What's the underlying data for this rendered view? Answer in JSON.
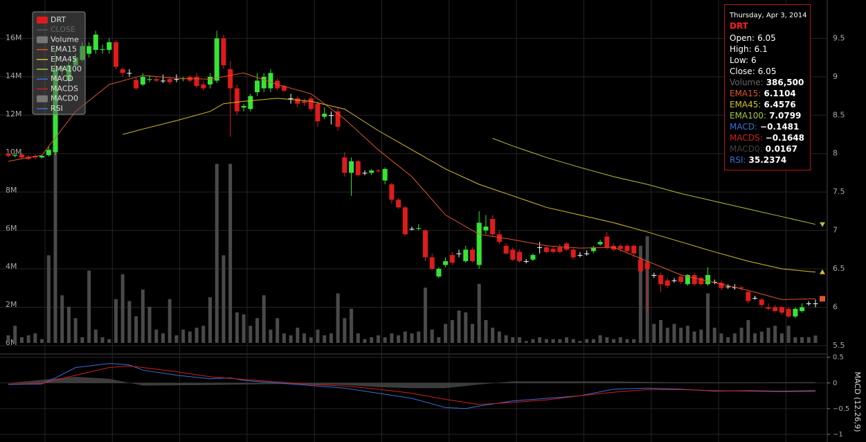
{
  "chart_data": {
    "type": "candlestick",
    "symbol": "DRT",
    "up_color": "#35e535",
    "down_color": "#e01b1b",
    "doji_color": "#ffffff",
    "ohlc": [
      [
        8.0,
        8.02,
        7.95,
        7.97
      ],
      [
        7.97,
        8.0,
        7.95,
        7.98
      ],
      [
        7.99,
        8.01,
        7.93,
        7.95
      ],
      [
        7.96,
        7.98,
        7.92,
        7.93
      ],
      [
        7.97,
        7.99,
        7.93,
        7.95
      ],
      [
        7.95,
        7.99,
        7.94,
        7.97
      ],
      [
        7.98,
        8.1,
        7.96,
        8.05
      ],
      [
        8.02,
        9.35,
        7.98,
        9.1
      ],
      [
        9.1,
        9.15,
        9.02,
        9.12
      ],
      [
        8.95,
        9.2,
        8.9,
        9.15
      ],
      [
        9.15,
        9.3,
        9.1,
        9.25
      ],
      [
        9.22,
        9.45,
        9.2,
        9.4
      ],
      [
        9.3,
        9.45,
        9.25,
        9.4
      ],
      [
        9.35,
        9.6,
        9.3,
        9.55
      ],
      [
        9.35,
        9.42,
        9.3,
        9.36
      ],
      [
        9.35,
        9.5,
        9.3,
        9.45
      ],
      [
        9.45,
        9.48,
        9.1,
        9.13
      ],
      [
        9.1,
        9.12,
        9.0,
        9.05
      ],
      [
        9.05,
        9.1,
        9.0,
        9.05
      ],
      [
        8.96,
        9.0,
        8.83,
        8.85
      ],
      [
        8.9,
        9.05,
        8.88,
        9.0
      ],
      [
        8.96,
        9.02,
        8.93,
        8.97
      ],
      [
        8.97,
        9.0,
        8.93,
        8.95
      ],
      [
        8.95,
        9.03,
        8.92,
        8.95
      ],
      [
        8.97,
        9.0,
        8.9,
        8.93
      ],
      [
        8.97,
        9.03,
        8.93,
        8.97
      ],
      [
        8.97,
        9.0,
        8.94,
        8.98
      ],
      [
        9.0,
        9.02,
        8.93,
        8.95
      ],
      [
        9.0,
        9.05,
        8.85,
        8.88
      ],
      [
        8.9,
        8.95,
        8.82,
        8.85
      ],
      [
        8.9,
        9.05,
        8.85,
        9.0
      ],
      [
        8.95,
        9.6,
        8.92,
        9.5
      ],
      [
        9.5,
        9.55,
        9.1,
        9.15
      ],
      [
        9.1,
        9.2,
        8.22,
        8.85
      ],
      [
        8.85,
        8.9,
        8.5,
        8.55
      ],
      [
        8.6,
        8.65,
        8.55,
        8.62
      ],
      [
        8.58,
        8.78,
        8.55,
        8.75
      ],
      [
        8.8,
        9.05,
        8.75,
        8.95
      ],
      [
        8.85,
        9.05,
        8.8,
        9.0
      ],
      [
        8.85,
        9.1,
        8.8,
        9.05
      ],
      [
        8.95,
        8.98,
        8.82,
        8.85
      ],
      [
        8.88,
        8.9,
        8.8,
        8.82
      ],
      [
        8.72,
        8.78,
        8.65,
        8.72
      ],
      [
        8.72,
        8.75,
        8.6,
        8.65
      ],
      [
        8.68,
        8.72,
        8.62,
        8.66
      ],
      [
        8.72,
        8.75,
        8.55,
        8.58
      ],
      [
        8.65,
        8.68,
        8.35,
        8.42
      ],
      [
        8.48,
        8.6,
        8.45,
        8.52
      ],
      [
        8.5,
        8.55,
        8.38,
        8.5
      ],
      [
        8.55,
        8.6,
        8.3,
        8.35
      ],
      [
        7.95,
        8.02,
        7.7,
        7.75
      ],
      [
        7.75,
        7.95,
        7.45,
        7.9
      ],
      [
        7.9,
        7.92,
        7.7,
        7.72
      ],
      [
        7.75,
        7.78,
        7.72,
        7.75
      ],
      [
        7.75,
        7.8,
        7.72,
        7.78
      ],
      [
        7.78,
        7.8,
        7.75,
        7.77
      ],
      [
        7.65,
        7.82,
        7.6,
        7.8
      ],
      [
        7.6,
        7.62,
        7.35,
        7.4
      ],
      [
        7.4,
        7.42,
        7.28,
        7.3
      ],
      [
        7.3,
        7.32,
        6.93,
        6.95
      ],
      [
        7.02,
        7.05,
        7.0,
        7.02
      ],
      [
        7.02,
        7.08,
        7.0,
        7.03
      ],
      [
        7.0,
        7.02,
        6.6,
        6.65
      ],
      [
        6.65,
        6.7,
        6.48,
        6.5
      ],
      [
        6.4,
        6.52,
        6.38,
        6.5
      ],
      [
        6.55,
        6.65,
        6.52,
        6.6
      ],
      [
        6.68,
        6.72,
        6.55,
        6.58
      ],
      [
        6.7,
        6.75,
        6.65,
        6.7
      ],
      [
        6.6,
        6.8,
        6.58,
        6.75
      ],
      [
        6.75,
        6.78,
        6.58,
        6.6
      ],
      [
        6.55,
        7.25,
        6.5,
        7.1
      ],
      [
        7.0,
        7.2,
        6.95,
        7.05
      ],
      [
        7.15,
        7.2,
        6.92,
        6.95
      ],
      [
        6.95,
        7.0,
        6.82,
        6.85
      ],
      [
        6.8,
        6.83,
        6.68,
        6.7
      ],
      [
        6.75,
        6.78,
        6.6,
        6.62
      ],
      [
        6.72,
        6.75,
        6.58,
        6.6
      ],
      [
        6.6,
        6.63,
        6.57,
        6.6
      ],
      [
        6.62,
        6.7,
        6.6,
        6.68
      ],
      [
        6.78,
        6.85,
        6.7,
        6.78
      ],
      [
        6.78,
        6.8,
        6.7,
        6.72
      ],
      [
        6.76,
        6.8,
        6.7,
        6.72
      ],
      [
        6.78,
        6.82,
        6.7,
        6.72
      ],
      [
        6.83,
        6.85,
        6.73,
        6.75
      ],
      [
        6.75,
        6.78,
        6.62,
        6.65
      ],
      [
        6.68,
        6.72,
        6.65,
        6.68
      ],
      [
        6.7,
        6.74,
        6.67,
        6.7
      ],
      [
        6.73,
        6.8,
        6.7,
        6.78
      ],
      [
        6.82,
        6.88,
        6.8,
        6.85
      ],
      [
        6.92,
        6.98,
        6.75,
        6.78
      ],
      [
        6.8,
        6.83,
        6.73,
        6.75
      ],
      [
        6.8,
        6.82,
        6.72,
        6.76
      ],
      [
        6.8,
        6.83,
        6.7,
        6.73
      ],
      [
        6.8,
        6.82,
        6.65,
        6.7
      ],
      [
        6.62,
        6.65,
        6.45,
        6.47
      ],
      [
        6.58,
        6.6,
        5.95,
        6.5
      ],
      [
        6.42,
        6.45,
        6.38,
        6.42
      ],
      [
        6.42,
        6.45,
        6.2,
        6.3
      ],
      [
        6.35,
        6.38,
        6.25,
        6.28
      ],
      [
        6.35,
        6.38,
        6.32,
        6.35
      ],
      [
        6.4,
        6.42,
        6.3,
        6.33
      ],
      [
        6.3,
        6.43,
        6.28,
        6.42
      ],
      [
        6.42,
        6.45,
        6.28,
        6.3
      ],
      [
        6.38,
        6.4,
        6.28,
        6.3
      ],
      [
        6.3,
        6.52,
        6.28,
        6.42
      ],
      [
        6.33,
        6.36,
        6.3,
        6.33
      ],
      [
        6.32,
        6.35,
        6.22,
        6.25
      ],
      [
        6.27,
        6.3,
        6.24,
        6.27
      ],
      [
        6.26,
        6.3,
        6.23,
        6.26
      ],
      [
        6.26,
        6.28,
        6.22,
        6.25
      ],
      [
        6.2,
        6.22,
        6.05,
        6.08
      ],
      [
        6.12,
        6.15,
        6.1,
        6.12
      ],
      [
        6.1,
        6.12,
        6.0,
        6.03
      ],
      [
        6.0,
        6.05,
        5.96,
        5.98
      ],
      [
        6.0,
        6.03,
        5.93,
        5.95
      ],
      [
        6.0,
        6.02,
        5.9,
        5.93
      ],
      [
        5.98,
        6.0,
        5.86,
        5.88
      ],
      [
        5.88,
        6.0,
        5.86,
        5.98
      ],
      [
        5.95,
        6.05,
        5.93,
        6.0
      ],
      [
        6.05,
        6.08,
        6.02,
        6.05
      ],
      [
        6.05,
        6.1,
        6.0,
        6.05
      ]
    ],
    "volume": {
      "color": "#4a4a4a",
      "values": [
        400000,
        900000,
        300000,
        400000,
        500000,
        200000,
        4600000,
        10400000,
        2500000,
        1900000,
        1300000,
        300000,
        3800000,
        700000,
        300000,
        200000,
        2300000,
        3600000,
        2200000,
        1400000,
        2800000,
        1900000,
        700000,
        500000,
        2300000,
        400000,
        700000,
        600000,
        800000,
        900000,
        2400000,
        9400000,
        4600000,
        9400000,
        1600000,
        1500000,
        900000,
        1300000,
        2500000,
        700000,
        1300000,
        500000,
        400000,
        800000,
        500000,
        300000,
        700000,
        400000,
        500000,
        2600000,
        1300000,
        1800000,
        500000,
        200000,
        300000,
        400000,
        300000,
        500000,
        400000,
        600000,
        500000,
        600000,
        2900000,
        700000,
        300000,
        1000000,
        1200000,
        1700000,
        1600000,
        1000000,
        3100000,
        1200000,
        800000,
        600000,
        400000,
        300000,
        300000,
        100000,
        200000,
        300000,
        200000,
        200000,
        200000,
        300000,
        200000,
        100000,
        200000,
        200000,
        400000,
        300000,
        200000,
        300000,
        200000,
        200000,
        5100000,
        5600000,
        1000000,
        1200000,
        800000,
        1000000,
        800000,
        900000,
        600000,
        700000,
        2600000,
        800000,
        500000,
        300000,
        500000,
        800000,
        1200000,
        500000,
        600000,
        800000,
        900000,
        500000,
        900000,
        300000,
        300000,
        300000,
        386500
      ]
    },
    "ylim": [
      5.4,
      10.0
    ],
    "yticks": [
      5.5,
      6,
      6.5,
      7,
      7.5,
      8,
      8.5,
      9,
      9.5
    ],
    "vlim": [
      0,
      18000000
    ],
    "vticks": [
      {
        "value": 0,
        "label": "0M"
      },
      {
        "value": 2000000,
        "label": "2M"
      },
      {
        "value": 4000000,
        "label": "4M"
      },
      {
        "value": 6000000,
        "label": "6M"
      },
      {
        "value": 8000000,
        "label": "8M"
      },
      {
        "value": 10000000,
        "label": "10M"
      },
      {
        "value": 12000000,
        "label": "12M"
      },
      {
        "value": 14000000,
        "label": "14M"
      },
      {
        "value": 16000000,
        "label": "16M"
      }
    ],
    "lines": [
      {
        "name": "EMA15",
        "color": "#e0562c",
        "x": [
          0,
          5,
          10,
          15,
          20,
          25,
          30,
          35,
          40,
          45,
          50,
          55,
          60,
          65,
          70,
          75,
          80,
          85,
          90,
          95,
          100,
          105,
          110,
          115,
          120
        ],
        "values": [
          7.9,
          7.98,
          8.55,
          8.9,
          9.02,
          8.98,
          8.97,
          9.05,
          8.9,
          8.78,
          8.45,
          8.05,
          7.7,
          7.2,
          6.95,
          6.88,
          6.8,
          6.77,
          6.78,
          6.6,
          6.42,
          6.32,
          6.22,
          6.1,
          6.1104
        ]
      },
      {
        "name": "EMA45",
        "color": "#d8c02a",
        "x": [
          17,
          20,
          25,
          30,
          32,
          35,
          40,
          45,
          50,
          55,
          60,
          65,
          70,
          75,
          80,
          85,
          90,
          95,
          100,
          105,
          110,
          115,
          120
        ],
        "values": [
          8.25,
          8.32,
          8.43,
          8.55,
          8.65,
          8.68,
          8.72,
          8.68,
          8.58,
          8.3,
          8.05,
          7.8,
          7.6,
          7.45,
          7.3,
          7.2,
          7.1,
          6.98,
          6.85,
          6.72,
          6.6,
          6.5,
          6.4576
        ]
      },
      {
        "name": "EMA100",
        "color": "#a8c838",
        "x": [
          72,
          75,
          80,
          85,
          90,
          95,
          100,
          105,
          110,
          115,
          120
        ],
        "values": [
          8.2,
          8.1,
          7.95,
          7.82,
          7.7,
          7.6,
          7.48,
          7.38,
          7.28,
          7.18,
          7.0799
        ]
      }
    ],
    "macd_panel": {
      "title": "MACD (12,26,9)",
      "ylim": [
        -1.15,
        0.55
      ],
      "yticks": [
        0.5,
        0,
        {
          "value": -0.5,
          "label": "−0.5"
        },
        {
          "value": -1,
          "label": "−1"
        }
      ],
      "area": {
        "name": "MACD0",
        "color": "#555555",
        "x": [
          0,
          10,
          15,
          20,
          30,
          40,
          50,
          55,
          60,
          65,
          70,
          75,
          80,
          90,
          100,
          110,
          120
        ],
        "values": [
          0,
          0.12,
          0.08,
          -0.05,
          -0.04,
          -0.02,
          -0.04,
          -0.08,
          -0.1,
          -0.1,
          -0.03,
          0.03,
          0.03,
          0.03,
          0.01,
          0.01,
          0.0167
        ]
      },
      "lines": [
        {
          "name": "MACD",
          "color": "#3a6fd8",
          "x": [
            0,
            5,
            7,
            10,
            15,
            18,
            20,
            25,
            30,
            33,
            35,
            40,
            45,
            50,
            55,
            60,
            65,
            68,
            70,
            75,
            80,
            85,
            90,
            95,
            100,
            105,
            110,
            115,
            120
          ],
          "values": [
            -0.03,
            -0.02,
            0.1,
            0.3,
            0.38,
            0.35,
            0.25,
            0.15,
            0.08,
            0.1,
            0.05,
            0,
            -0.05,
            -0.1,
            -0.2,
            -0.3,
            -0.48,
            -0.5,
            -0.45,
            -0.35,
            -0.3,
            -0.25,
            -0.12,
            -0.1,
            -0.12,
            -0.16,
            -0.15,
            -0.16,
            -0.1481
          ]
        },
        {
          "name": "MACDS",
          "color": "#d02020",
          "x": [
            0,
            5,
            10,
            15,
            18,
            20,
            25,
            30,
            35,
            40,
            45,
            50,
            55,
            60,
            65,
            70,
            75,
            80,
            85,
            90,
            95,
            100,
            105,
            110,
            115,
            120
          ],
          "values": [
            -0.02,
            -0.01,
            0.15,
            0.3,
            0.33,
            0.3,
            0.22,
            0.12,
            0.07,
            0.02,
            -0.03,
            -0.06,
            -0.12,
            -0.2,
            -0.32,
            -0.42,
            -0.38,
            -0.33,
            -0.25,
            -0.18,
            -0.13,
            -0.13,
            -0.15,
            -0.16,
            -0.17,
            -0.1648
          ]
        }
      ]
    },
    "legend": [
      {
        "name": "DRT",
        "color": "#e01b1b"
      },
      {
        "name": "CLOSE",
        "color": "#555555"
      },
      {
        "name": "Volume",
        "color": "#777777"
      },
      {
        "name": "EMA15",
        "color": "#e0562c"
      },
      {
        "name": "EMA45",
        "color": "#d8c02a"
      },
      {
        "name": "EMA100",
        "color": "#a8c838"
      },
      {
        "name": "MACD",
        "color": "#3a6fd8"
      },
      {
        "name": "MACDS",
        "color": "#d02020"
      },
      {
        "name": "MACD0",
        "color": "#777777"
      },
      {
        "name": "RSI",
        "color": "#3a6fd8"
      }
    ],
    "tooltip": {
      "date": "Thursday, Apr 3, 2014",
      "rows": [
        {
          "label": "Open:",
          "value": 6.05,
          "color": "#ffffff"
        },
        {
          "label": "High:",
          "value": 6.1,
          "color": "#ffffff"
        },
        {
          "label": "Low:",
          "value": 6,
          "color": "#ffffff"
        },
        {
          "label": "Close:",
          "value": 6.05,
          "color": "#ffffff"
        },
        {
          "label": "Volume:",
          "value": "386,500",
          "color": "#666666"
        },
        {
          "label": "EMA15:",
          "value": 6.1104,
          "color": "#e0562c"
        },
        {
          "label": "EMA45:",
          "value": 6.4576,
          "color": "#d8c02a"
        },
        {
          "label": "EMA100:",
          "value": 7.0799,
          "color": "#a8c838"
        },
        {
          "label": "MACD:",
          "value": "−0.1481",
          "color": "#3a6fd8"
        },
        {
          "label": "MACDS:",
          "value": "−0.1648",
          "color": "#d02020"
        },
        {
          "label": "MACD0:",
          "value": 0.0167,
          "color": "#444444"
        },
        {
          "label": "RSI:",
          "value": 35.2374,
          "color": "#3a6fd8"
        }
      ]
    }
  }
}
